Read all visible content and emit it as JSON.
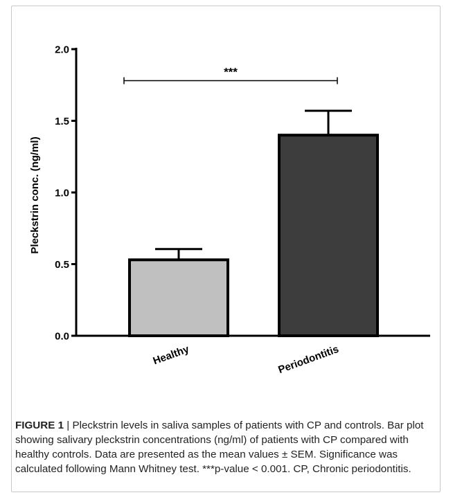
{
  "chart_data": {
    "type": "bar",
    "categories": [
      "Healthy",
      "Periodontitis"
    ],
    "values": [
      0.53,
      1.4
    ],
    "error_sem": [
      0.075,
      0.17
    ],
    "title": "",
    "xlabel": "",
    "ylabel": "Pleckstrin conc.  (ng/ml)",
    "ylim": [
      0,
      2.0
    ],
    "yticks": [
      "0.0",
      "0.5",
      "1.0",
      "1.5",
      "2.0"
    ],
    "ytick_values": [
      0,
      0.5,
      1.0,
      1.5,
      2.0
    ],
    "bar_colors": [
      "#c0c0c0",
      "#3d3d3d"
    ],
    "grid": false,
    "significance": {
      "label": "***",
      "between": [
        "Healthy",
        "Periodontitis"
      ],
      "y": 1.78
    }
  },
  "caption": {
    "label": "FIGURE 1",
    "separator": " | ",
    "text": "Pleckstrin levels in saliva samples of patients with CP and controls. Bar plot showing salivary pleckstrin concentrations (ng/ml) of patients with CP compared with healthy controls. Data are presented as the mean values ± SEM. Significance was calculated following Mann Whitney test. ***p-value < 0.001. CP, Chronic periodontitis."
  }
}
